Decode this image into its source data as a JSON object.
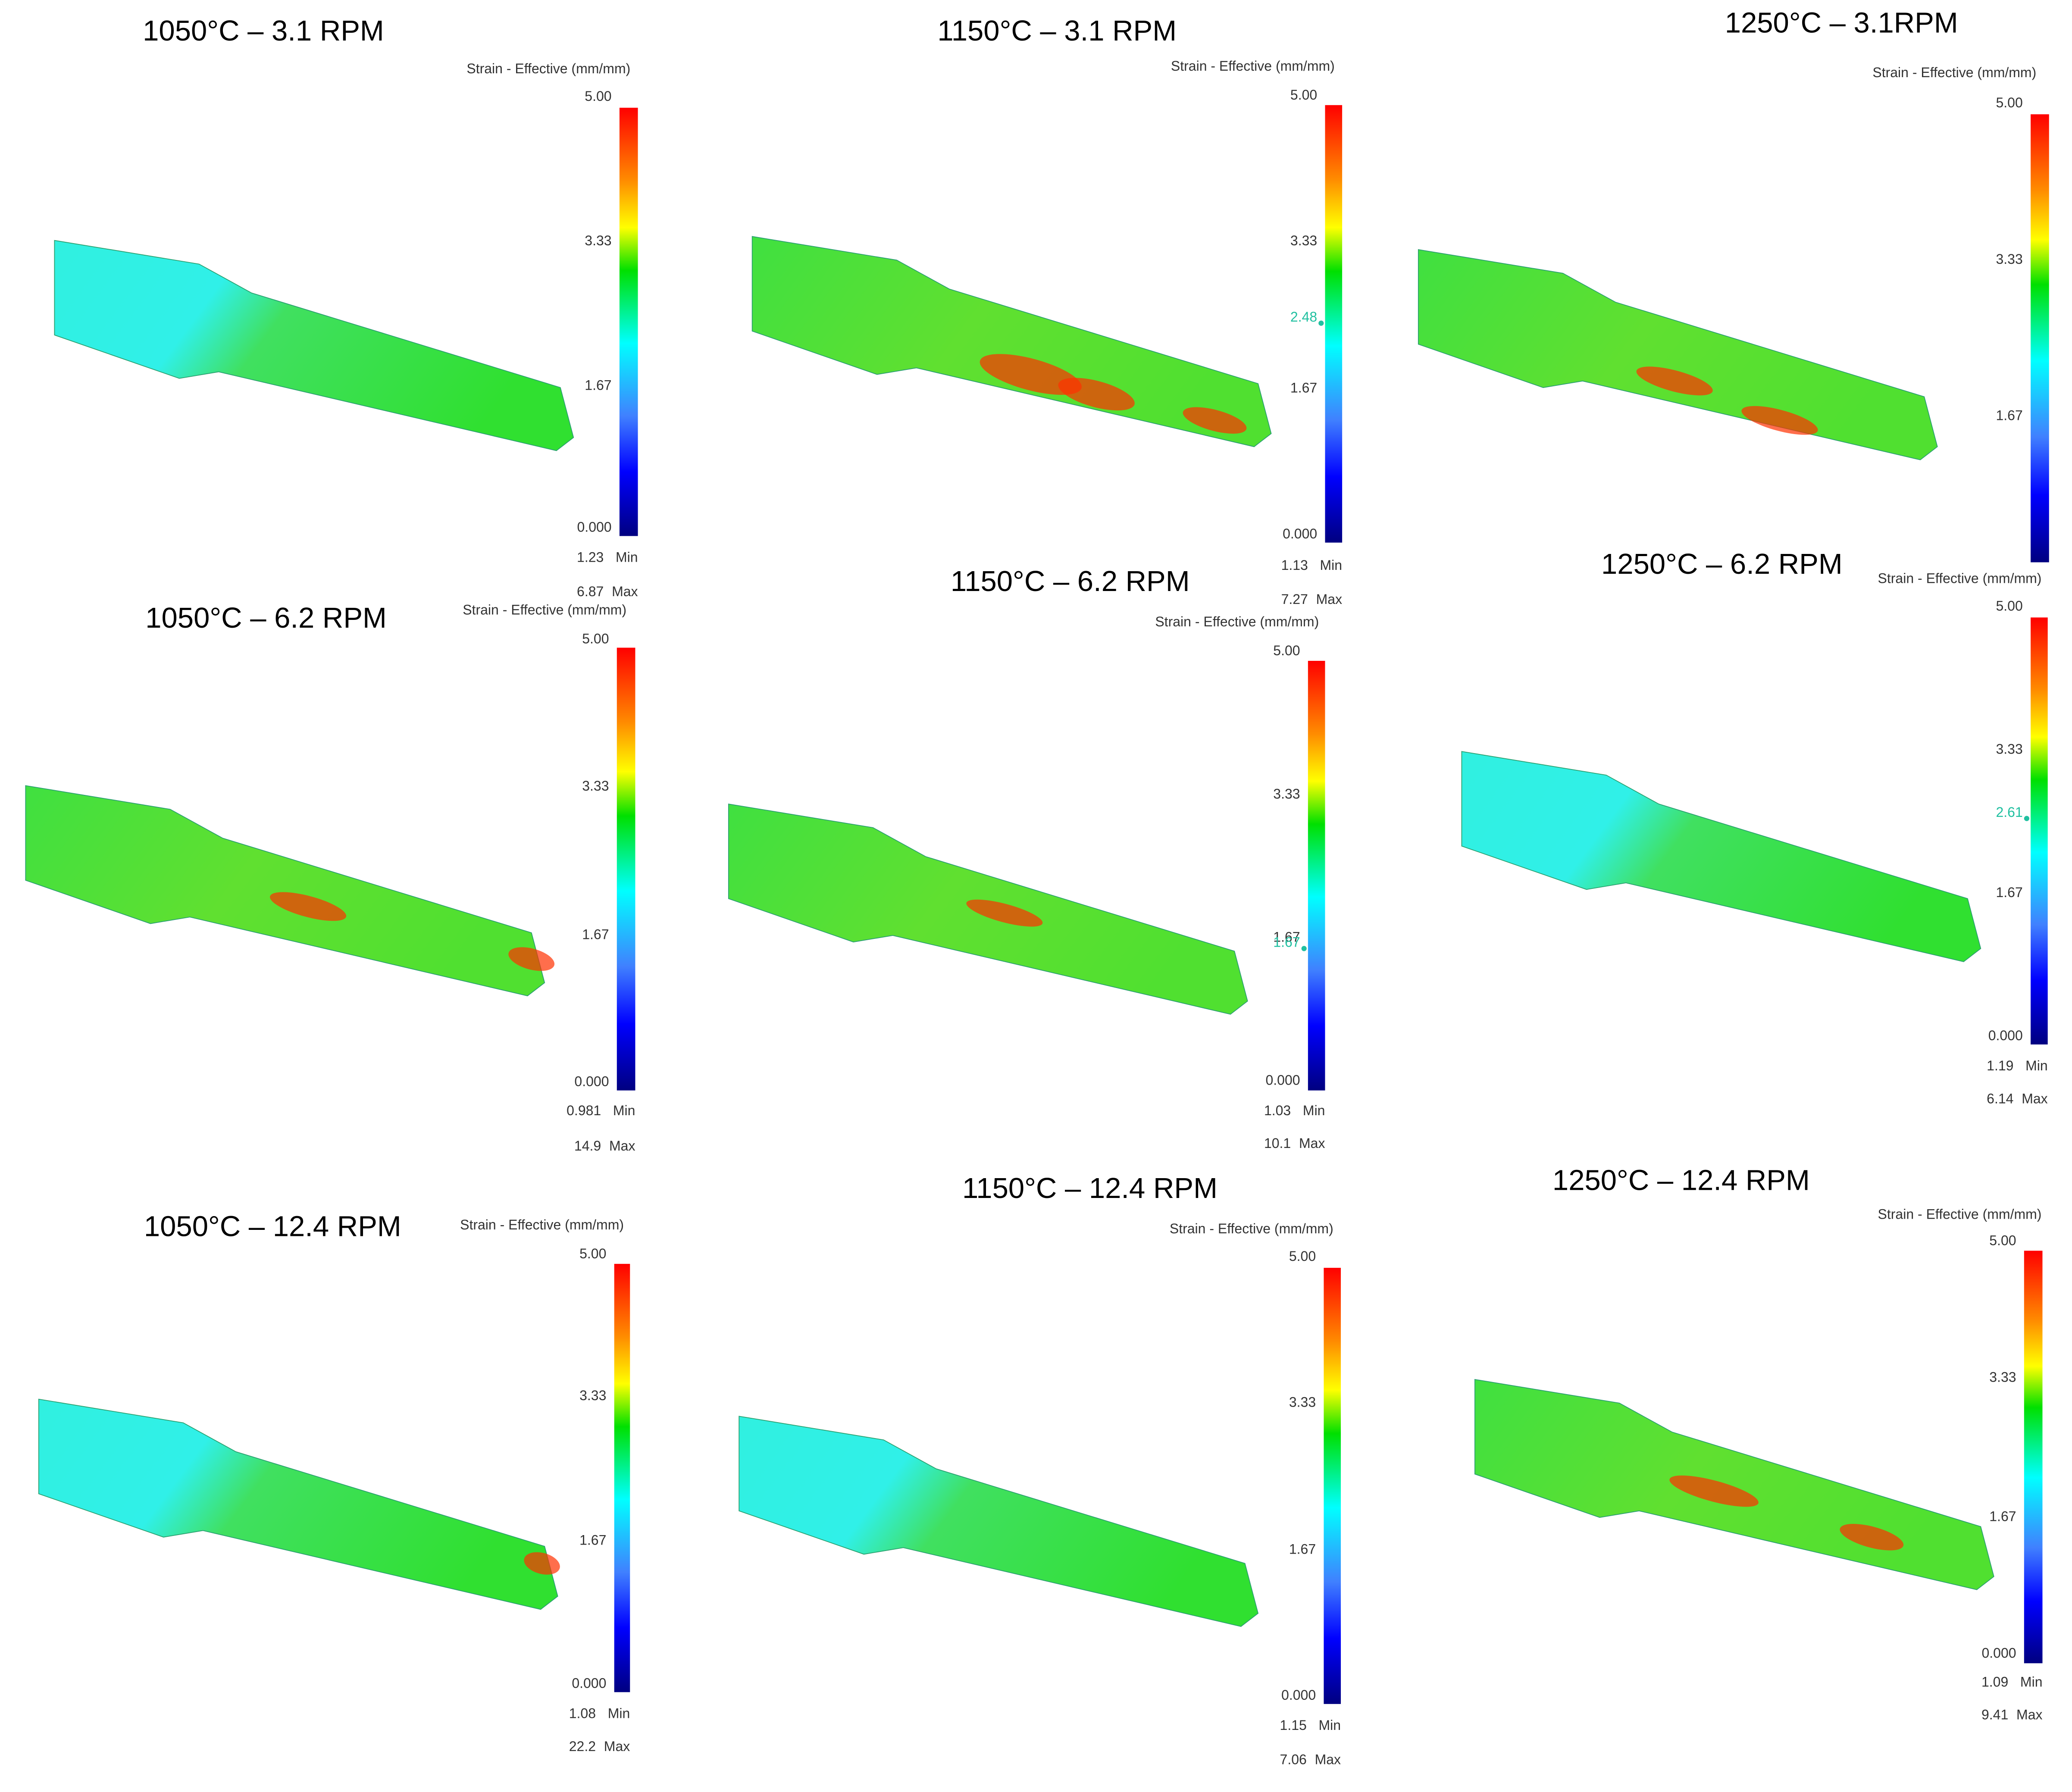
{
  "panels": [
    {
      "title": "1050°C – 3.1 RPM",
      "legend_title": "Strain - Effective (mm/mm)",
      "scale_labels": [
        "5.00",
        "3.33",
        "1.67",
        "0.000"
      ],
      "min_value": "1.23",
      "min_label": "Min",
      "max_value": "6.87",
      "max_label": "Max"
    },
    {
      "title": "1150°C – 3.1 RPM",
      "legend_title": "Strain - Effective (mm/mm)",
      "scale_labels": [
        "5.00",
        "3.33",
        "1.67",
        "0.000"
      ],
      "probe": "2.48",
      "min_value": "1.13",
      "min_label": "Min",
      "max_value": "7.27",
      "max_label": "Max"
    },
    {
      "title": "1250°C – 3.1RPM",
      "legend_title": "Strain - Effective (mm/mm)",
      "scale_labels": [
        "5.00",
        "3.33",
        "1.67"
      ]
    },
    {
      "title": "1050°C – 6.2 RPM",
      "legend_title": "Strain - Effective (mm/mm)",
      "scale_labels": [
        "5.00",
        "3.33",
        "1.67",
        "0.000"
      ],
      "min_value": "0.981",
      "min_label": "Min",
      "max_value": "14.9",
      "max_label": "Max"
    },
    {
      "title": "1150°C – 6.2 RPM",
      "legend_title": "Strain - Effective (mm/mm)",
      "scale_labels": [
        "5.00",
        "3.33",
        "1.67",
        "0.000"
      ],
      "probe": "1.67",
      "min_value": "1.03",
      "min_label": "Min",
      "max_value": "10.1",
      "max_label": "Max"
    },
    {
      "title": "1250°C – 6.2 RPM",
      "legend_title": "Strain - Effective (mm/mm)",
      "scale_labels": [
        "5.00",
        "3.33",
        "1.67",
        "0.000"
      ],
      "probe": "2.61",
      "min_value": "1.19",
      "min_label": "Min",
      "max_value": "6.14",
      "max_label": "Max"
    },
    {
      "title": "1050°C – 12.4 RPM",
      "legend_title": "Strain - Effective (mm/mm)",
      "scale_labels": [
        "5.00",
        "3.33",
        "1.67",
        "0.000"
      ],
      "min_value": "1.08",
      "min_label": "Min",
      "max_value": "22.2",
      "max_label": "Max"
    },
    {
      "title": "1150°C – 12.4 RPM",
      "legend_title": "Strain - Effective (mm/mm)",
      "scale_labels": [
        "5.00",
        "3.33",
        "1.67",
        "0.000"
      ],
      "min_value": "1.15",
      "min_label": "Min",
      "max_value": "7.06",
      "max_label": "Max"
    },
    {
      "title": "1250°C – 12.4 RPM",
      "legend_title": "Strain - Effective (mm/mm)",
      "scale_labels": [
        "5.00",
        "3.33",
        "1.67",
        "0.000"
      ],
      "min_value": "1.09",
      "min_label": "Min",
      "max_value": "9.41",
      "max_label": "Max"
    }
  ]
}
